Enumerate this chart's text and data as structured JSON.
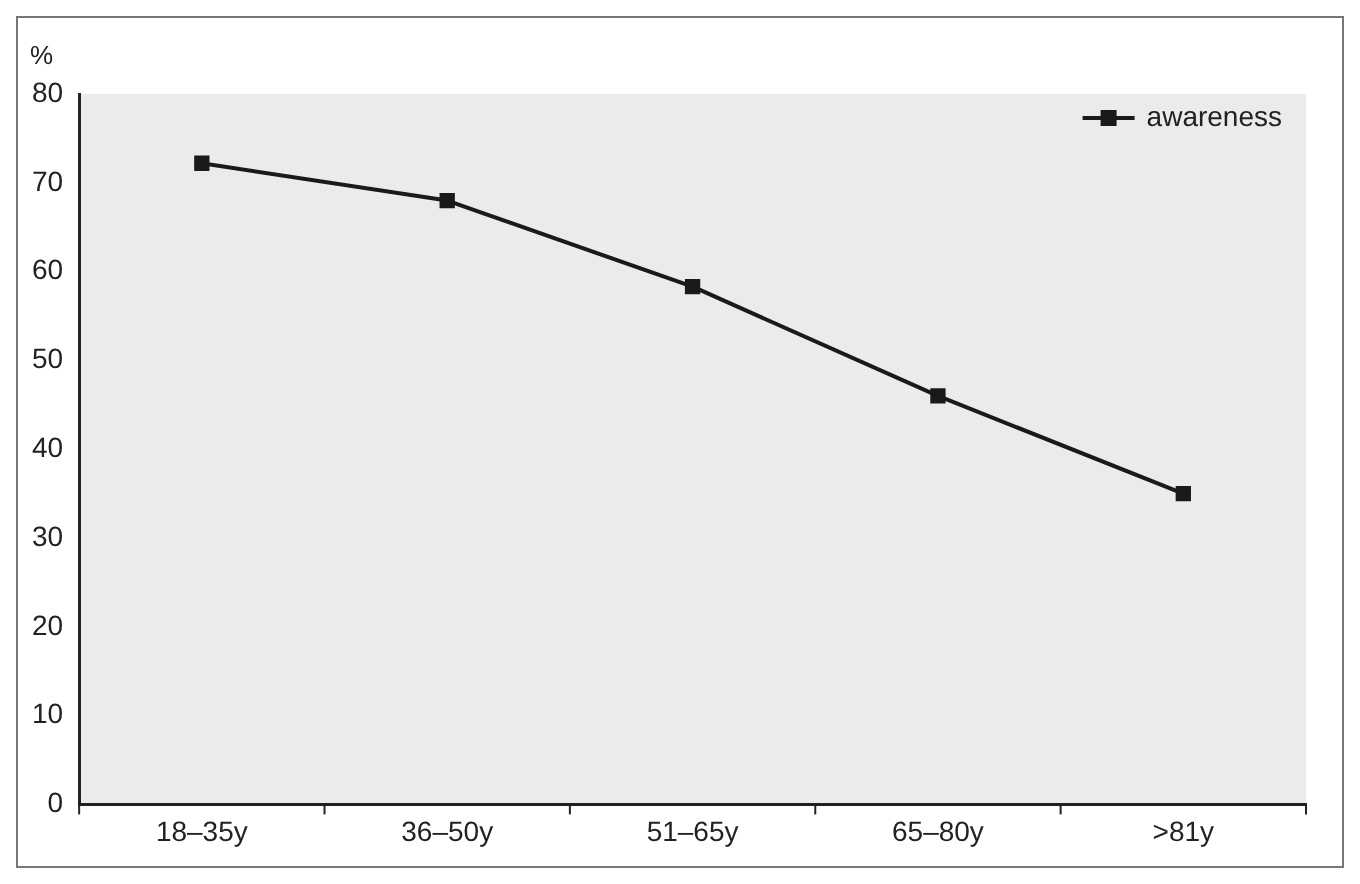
{
  "chart_data": {
    "type": "line",
    "ylabel": "%",
    "categories": [
      "18–35y",
      "36–50y",
      "51–65y",
      "65–80y",
      ">81y"
    ],
    "series": [
      {
        "name": "awareness",
        "color": "#1a1a1a",
        "values": [
          72.2,
          68,
          58.3,
          46,
          35
        ]
      }
    ],
    "ylim": [
      0,
      80
    ],
    "yticks": [
      0,
      10,
      20,
      30,
      40,
      50,
      60,
      70,
      80
    ],
    "grid": false,
    "legend": "top right",
    "marker": "square",
    "line_style": "solid"
  }
}
